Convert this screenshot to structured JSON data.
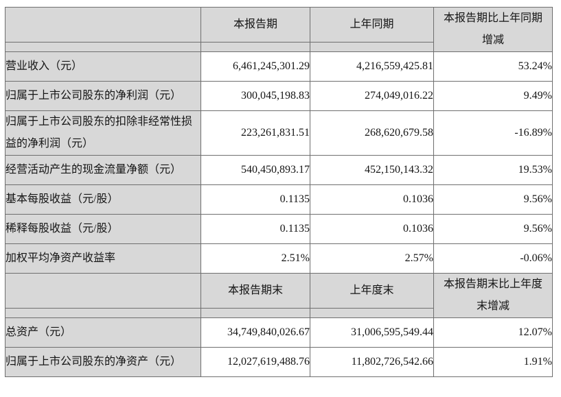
{
  "document": {
    "kind": "financial-summary-table",
    "colors": {
      "header_fill": "#d8d8d8",
      "border": "#6e6e6e",
      "text": "#141414",
      "background": "#ffffff"
    },
    "sections": [
      {
        "header": {
          "label_col": "",
          "col2": "本报告期",
          "col3": "上年同期",
          "col4_lines": [
            "本报告期比上年同期",
            "增减"
          ]
        },
        "rows": [
          {
            "label": "营业收入（元）",
            "current": "6,461,245,301.29",
            "prior": "4,216,559,425.81",
            "change": "53.24%"
          },
          {
            "label": "归属于上市公司股东的净利润（元）",
            "current": "300,045,198.83",
            "prior": "274,049,016.22",
            "change": "9.49%"
          },
          {
            "label": "归属于上市公司股东的扣除非经常性损益的净利润（元）",
            "current": "223,261,831.51",
            "prior": "268,620,679.58",
            "change": "-16.89%"
          },
          {
            "label": "经营活动产生的现金流量净额（元）",
            "current": "540,450,893.17",
            "prior": "452,150,143.32",
            "change": "19.53%"
          },
          {
            "label": "基本每股收益（元/股）",
            "current": "0.1135",
            "prior": "0.1036",
            "change": "9.56%"
          },
          {
            "label": "稀释每股收益（元/股）",
            "current": "0.1135",
            "prior": "0.1036",
            "change": "9.56%"
          },
          {
            "label": "加权平均净资产收益率",
            "current": "2.51%",
            "prior": "2.57%",
            "change": "-0.06%"
          }
        ]
      },
      {
        "header": {
          "label_col": "",
          "col2": "本报告期末",
          "col3": "上年度末",
          "col4_lines": [
            "本报告期末比上年度",
            "末增减"
          ]
        },
        "rows": [
          {
            "label": "总资产（元）",
            "current": "34,749,840,026.67",
            "prior": "31,006,595,549.44",
            "change": "12.07%"
          },
          {
            "label": "归属于上市公司股东的净资产（元）",
            "current": "12,027,619,488.76",
            "prior": "11,802,726,542.66",
            "change": "1.91%"
          }
        ]
      }
    ]
  }
}
